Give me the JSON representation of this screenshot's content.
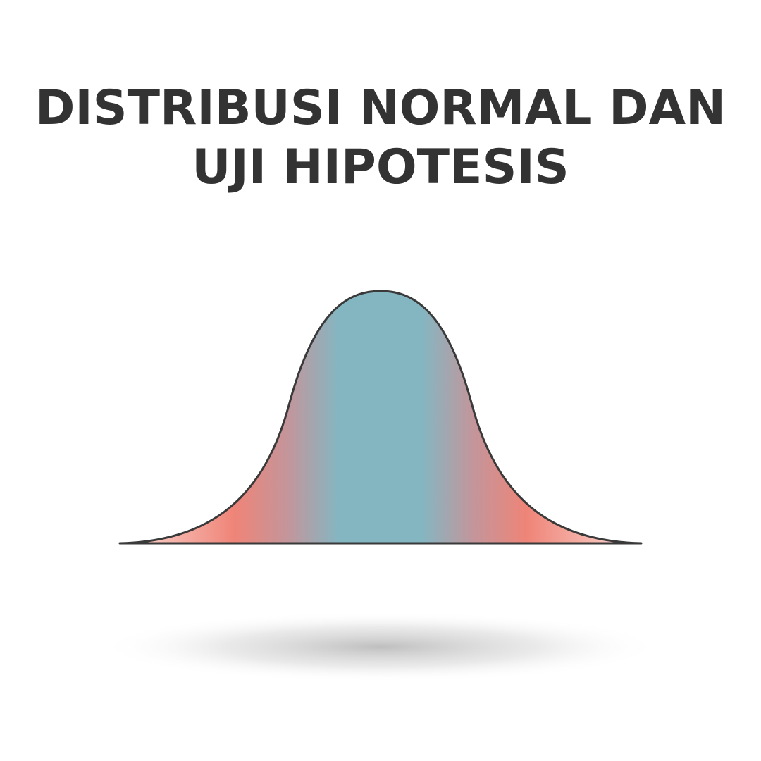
{
  "title": {
    "line1": "DISTRIBUSI NORMAL DAN",
    "line2": "UJI HIPOTESIS"
  },
  "colors": {
    "text": "#333333",
    "center": "#84b6c2",
    "tail": "#ef8478",
    "outline": "#3a3a3a",
    "shadow": "#bdbdbd"
  },
  "icon": "bell-curve-icon"
}
